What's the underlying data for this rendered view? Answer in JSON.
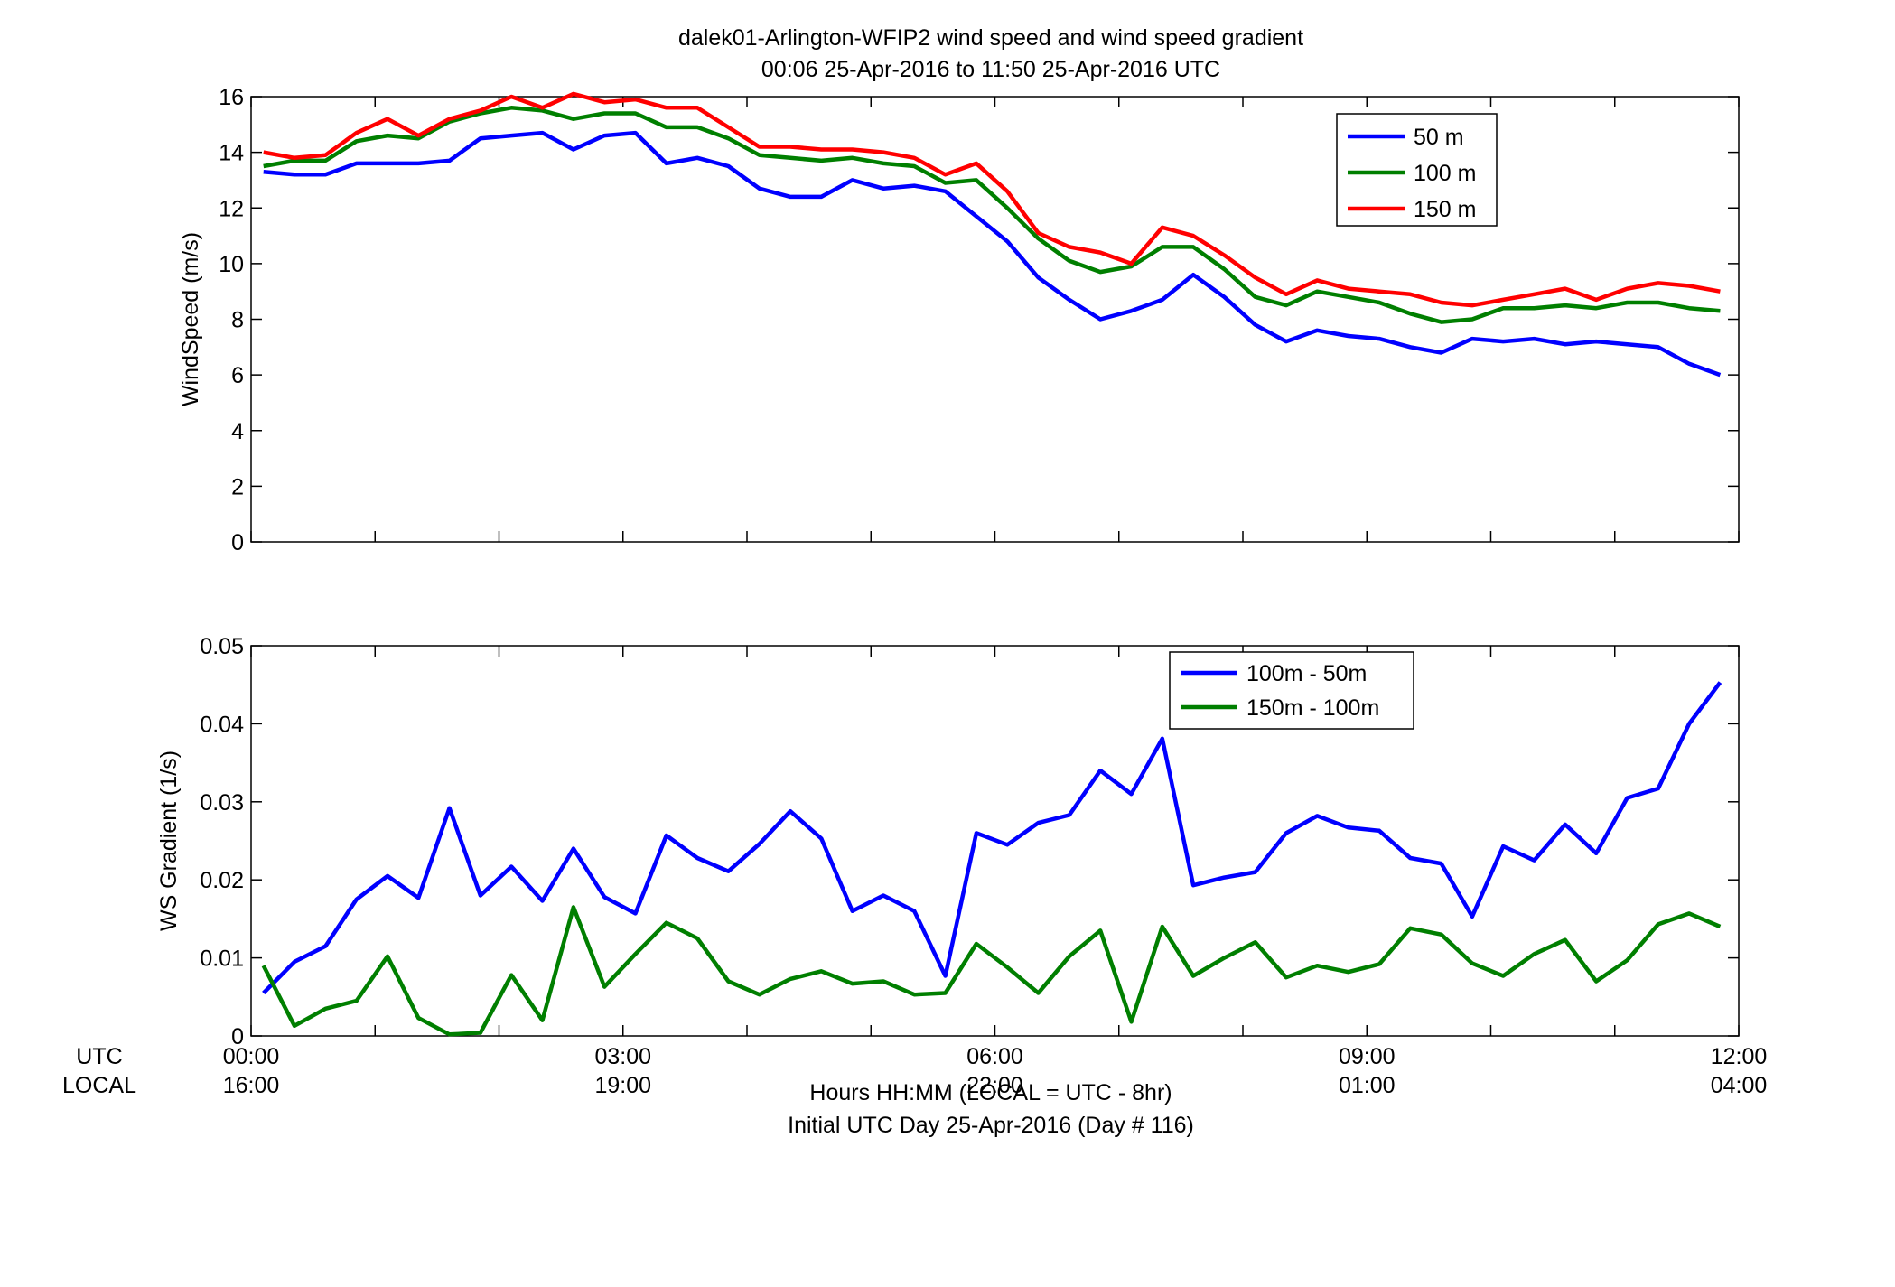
{
  "figure": {
    "title_line1": "dalek01-Arlington-WFIP2  wind speed and wind speed gradient",
    "title_line2": "00:06 25-Apr-2016 to 11:50 25-Apr-2016  UTC",
    "row_label_utc": "UTC",
    "row_label_local": "LOCAL",
    "xlabel_line1": "Hours HH:MM  (LOCAL = UTC - 8hr)",
    "xlabel_line2": "Initial UTC Day 25-Apr-2016 (Day # 116)",
    "utc_ticks": [
      "00:00",
      "03:00",
      "06:00",
      "09:00",
      "12:00"
    ],
    "local_ticks": [
      "16:00",
      "19:00",
      "22:00",
      "01:00",
      "04:00"
    ]
  },
  "colors": {
    "blue": "#0000ff",
    "green": "#007f00",
    "red": "#ff0000"
  },
  "chart_data": [
    {
      "type": "line",
      "ylabel": "WindSpeed (m/s)",
      "xlim": [
        0,
        12
      ],
      "ylim": [
        0,
        16
      ],
      "yticks": [
        0,
        2,
        4,
        6,
        8,
        10,
        12,
        14,
        16
      ],
      "ytick_labels": [
        "0",
        "2",
        "4",
        "6",
        "8",
        "10",
        "12",
        "14",
        "16"
      ],
      "grid": false,
      "legend_position": "top-right",
      "x": [
        0.1,
        0.35,
        0.6,
        0.85,
        1.1,
        1.35,
        1.6,
        1.85,
        2.1,
        2.35,
        2.6,
        2.85,
        3.1,
        3.35,
        3.6,
        3.85,
        4.1,
        4.35,
        4.6,
        4.85,
        5.1,
        5.35,
        5.6,
        5.85,
        6.1,
        6.35,
        6.6,
        6.85,
        7.1,
        7.35,
        7.6,
        7.85,
        8.1,
        8.35,
        8.6,
        8.85,
        9.1,
        9.35,
        9.6,
        9.85,
        10.1,
        10.35,
        10.6,
        10.85,
        11.1,
        11.35,
        11.6,
        11.85
      ],
      "series": [
        {
          "name": "50 m",
          "color": "blue",
          "values": [
            13.3,
            13.2,
            13.2,
            13.6,
            13.6,
            13.6,
            13.7,
            14.5,
            14.6,
            14.7,
            14.1,
            14.6,
            14.7,
            13.6,
            13.8,
            13.5,
            12.7,
            12.4,
            12.4,
            13.0,
            12.7,
            12.8,
            12.6,
            11.7,
            10.8,
            9.5,
            8.7,
            8.0,
            8.3,
            8.7,
            9.6,
            8.8,
            7.8,
            7.2,
            7.6,
            7.4,
            7.3,
            7.0,
            6.8,
            7.3,
            7.2,
            7.3,
            7.1,
            7.2,
            7.1,
            7.0,
            6.4,
            6.0
          ]
        },
        {
          "name": "100 m",
          "color": "green",
          "values": [
            13.5,
            13.7,
            13.7,
            14.4,
            14.6,
            14.5,
            15.1,
            15.4,
            15.6,
            15.5,
            15.2,
            15.4,
            15.4,
            14.9,
            14.9,
            14.5,
            13.9,
            13.8,
            13.7,
            13.8,
            13.6,
            13.5,
            12.9,
            13.0,
            12.0,
            10.9,
            10.1,
            9.7,
            9.9,
            10.6,
            10.6,
            9.8,
            8.8,
            8.5,
            9.0,
            8.8,
            8.6,
            8.2,
            7.9,
            8.0,
            8.4,
            8.4,
            8.5,
            8.4,
            8.6,
            8.6,
            8.4,
            8.3
          ]
        },
        {
          "name": "150 m",
          "color": "red",
          "values": [
            14.0,
            13.8,
            13.9,
            14.7,
            15.2,
            14.6,
            15.2,
            15.5,
            16.0,
            15.6,
            16.1,
            15.8,
            15.9,
            15.6,
            15.6,
            14.9,
            14.2,
            14.2,
            14.1,
            14.1,
            14.0,
            13.8,
            13.2,
            13.6,
            12.6,
            11.1,
            10.6,
            10.4,
            10.0,
            11.3,
            11.0,
            10.3,
            9.5,
            8.9,
            9.4,
            9.1,
            9.0,
            8.9,
            8.6,
            8.5,
            8.7,
            8.9,
            9.1,
            8.7,
            9.1,
            9.3,
            9.2,
            9.0
          ]
        }
      ]
    },
    {
      "type": "line",
      "ylabel": "WS Gradient (1/s)",
      "xlim": [
        0,
        12
      ],
      "ylim": [
        0,
        0.05
      ],
      "yticks": [
        0,
        0.01,
        0.02,
        0.03,
        0.04,
        0.05
      ],
      "ytick_labels": [
        "0",
        "0.01",
        "0.02",
        "0.03",
        "0.04",
        "0.05"
      ],
      "grid": false,
      "legend_position": "top-right",
      "x": [
        0.1,
        0.35,
        0.6,
        0.85,
        1.1,
        1.35,
        1.6,
        1.85,
        2.1,
        2.35,
        2.6,
        2.85,
        3.1,
        3.35,
        3.6,
        3.85,
        4.1,
        4.35,
        4.6,
        4.85,
        5.1,
        5.35,
        5.6,
        5.85,
        6.1,
        6.35,
        6.6,
        6.85,
        7.1,
        7.35,
        7.6,
        7.85,
        8.1,
        8.35,
        8.6,
        8.85,
        9.1,
        9.35,
        9.6,
        9.85,
        10.1,
        10.35,
        10.6,
        10.85,
        11.1,
        11.35,
        11.6,
        11.85
      ],
      "series": [
        {
          "name": "100m - 50m",
          "color": "blue",
          "values": [
            0.0055,
            0.0095,
            0.0115,
            0.0175,
            0.0205,
            0.0177,
            0.0292,
            0.018,
            0.0217,
            0.0173,
            0.024,
            0.0178,
            0.0157,
            0.0257,
            0.0228,
            0.0211,
            0.0246,
            0.0288,
            0.0253,
            0.016,
            0.018,
            0.016,
            0.0077,
            0.026,
            0.0245,
            0.0273,
            0.0283,
            0.034,
            0.031,
            0.0381,
            0.0193,
            0.0203,
            0.021,
            0.026,
            0.0282,
            0.0267,
            0.0263,
            0.0228,
            0.0221,
            0.0153,
            0.0243,
            0.0225,
            0.0271,
            0.0234,
            0.0305,
            0.0317,
            0.04,
            0.0453
          ]
        },
        {
          "name": "150m - 100m",
          "color": "green",
          "values": [
            0.009,
            0.0013,
            0.0035,
            0.0045,
            0.0102,
            0.0023,
            0.0002,
            0.0004,
            0.0078,
            0.002,
            0.0165,
            0.0063,
            0.0105,
            0.0145,
            0.0125,
            0.007,
            0.0053,
            0.0073,
            0.0083,
            0.0067,
            0.007,
            0.0053,
            0.0055,
            0.0118,
            0.0088,
            0.0055,
            0.0102,
            0.0135,
            0.0018,
            0.014,
            0.0077,
            0.01,
            0.012,
            0.0075,
            0.009,
            0.0082,
            0.0092,
            0.0138,
            0.013,
            0.0093,
            0.0077,
            0.0105,
            0.0123,
            0.007,
            0.0097,
            0.0143,
            0.0157,
            0.014
          ]
        }
      ]
    }
  ]
}
